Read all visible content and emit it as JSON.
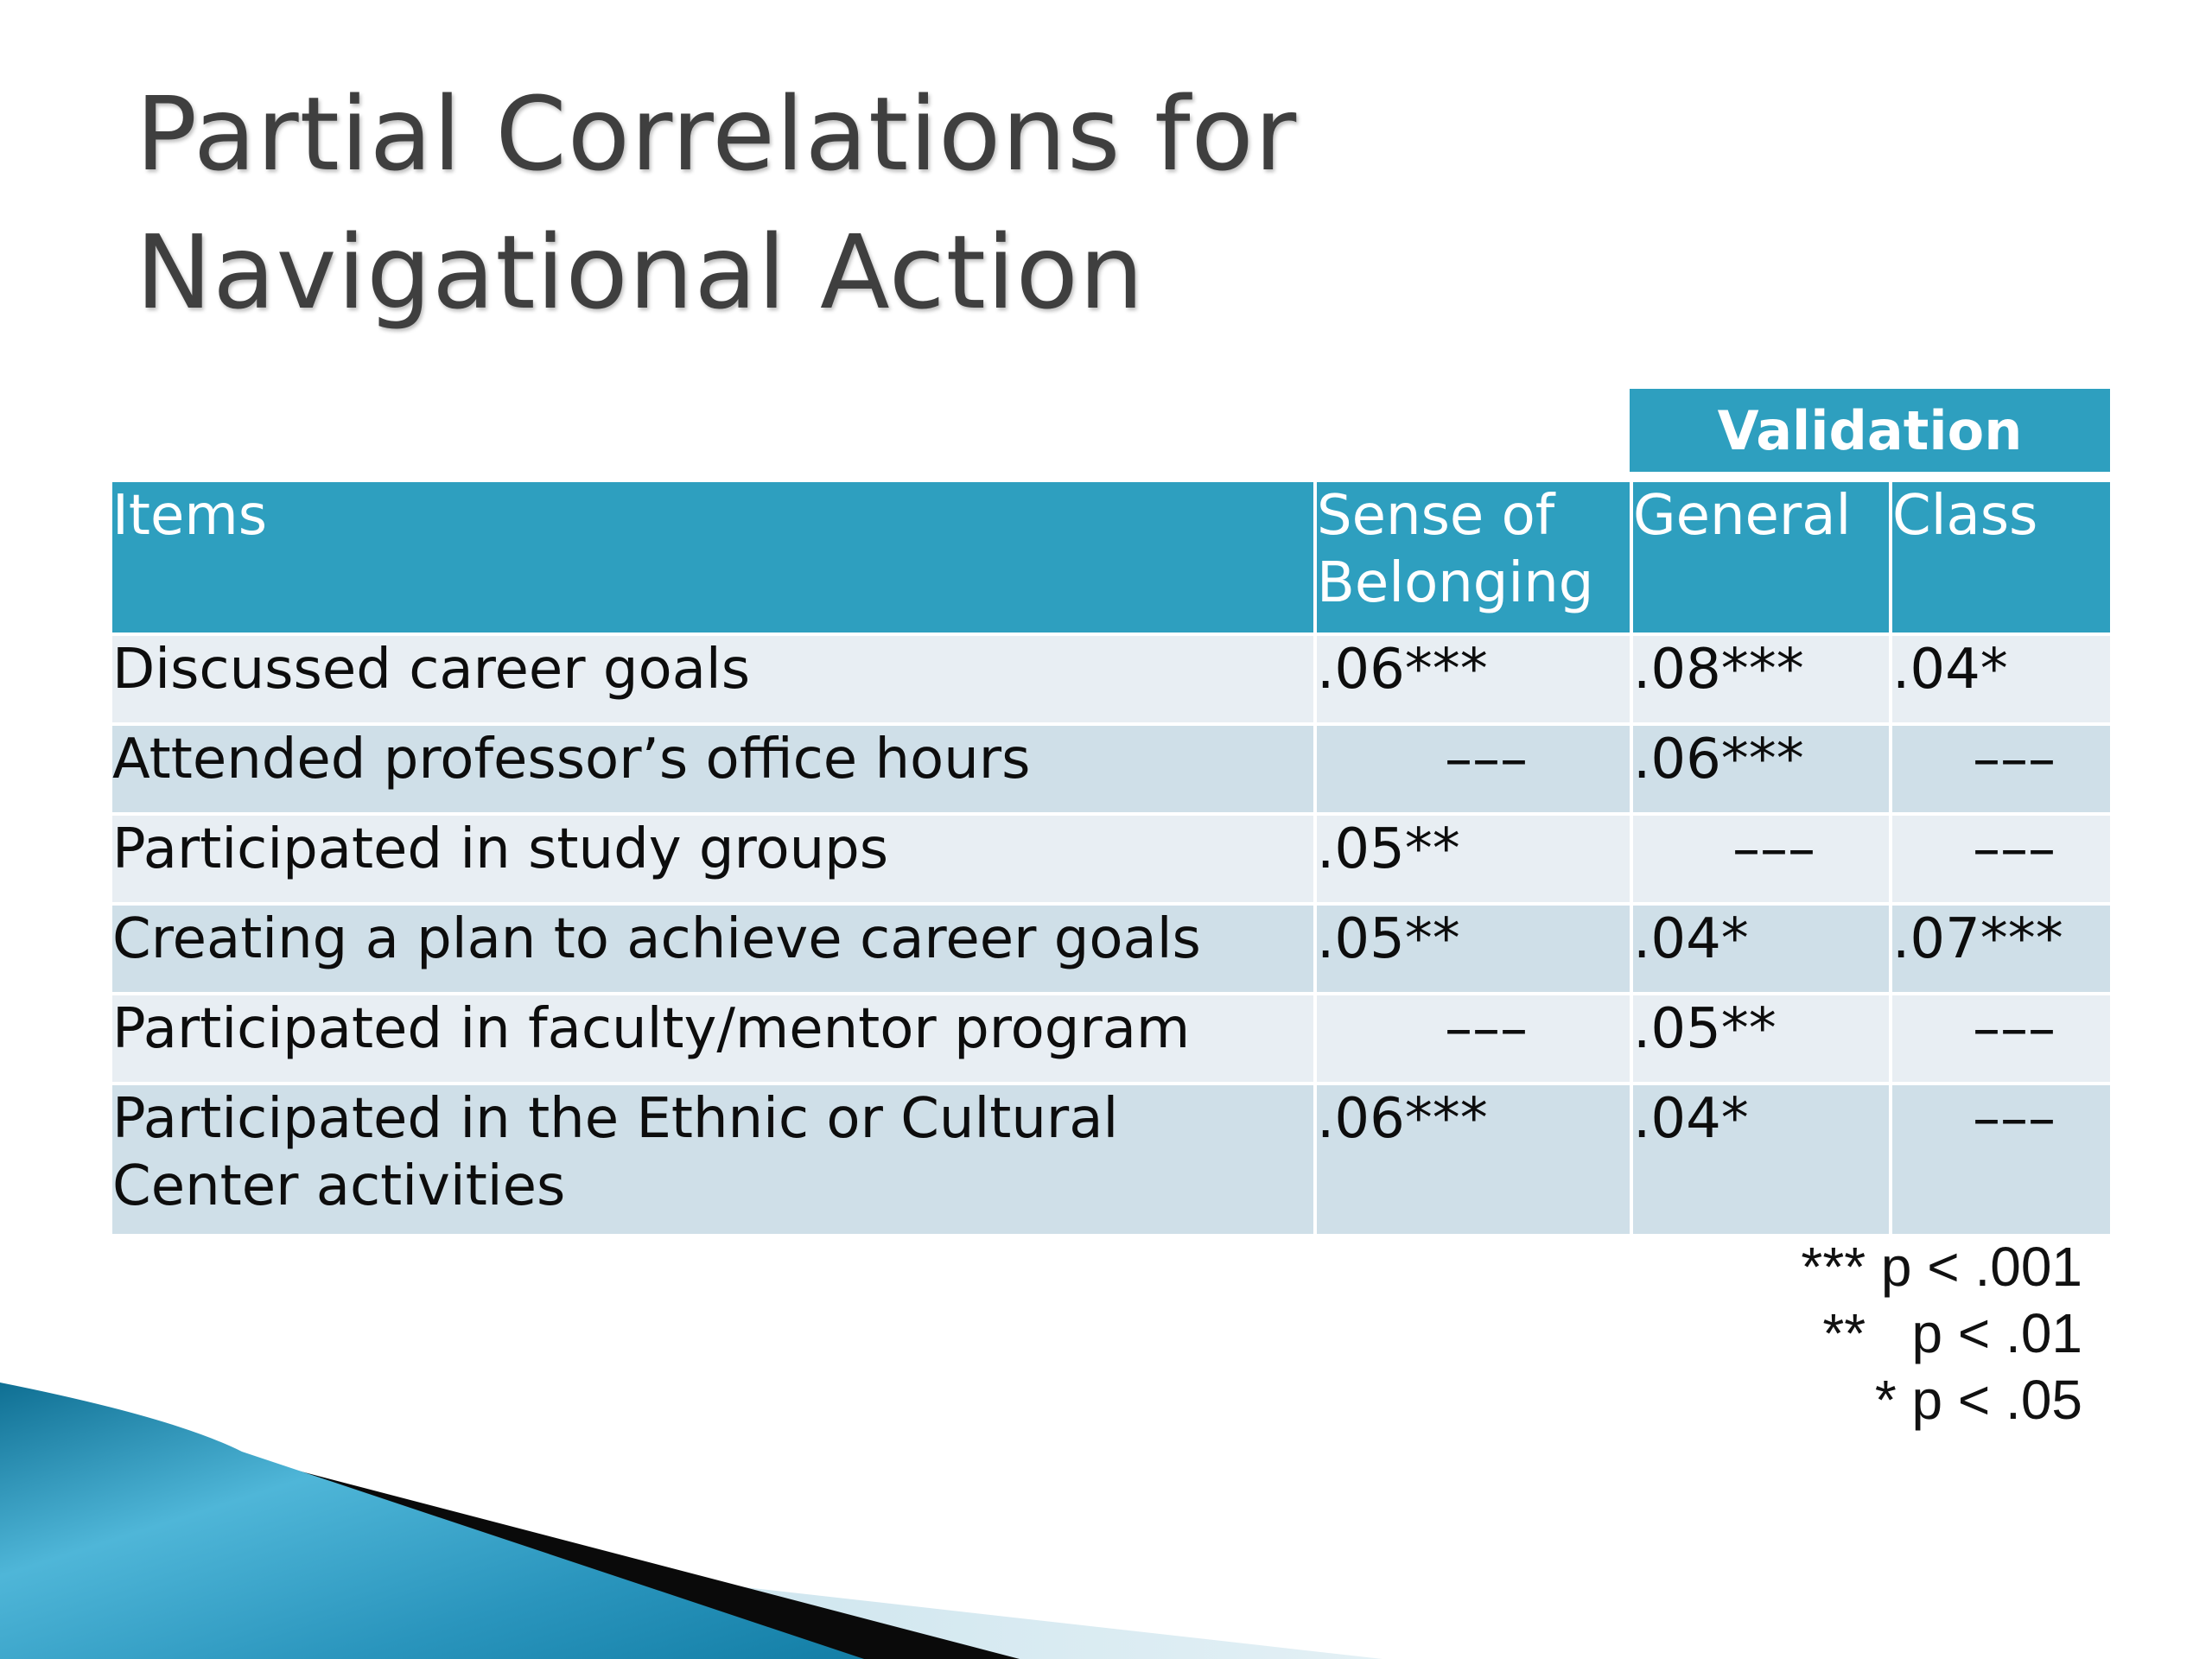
{
  "slide": {
    "title_line1": "Partial Correlations for",
    "title_line2": "Navigational Action"
  },
  "table": {
    "group_header": "Validation",
    "columns": {
      "items": "Items",
      "sense_line1": "Sense of",
      "sense_line2": "Belonging",
      "general": "General",
      "class": "Class"
    },
    "rows": [
      {
        "item_line1": "Discussed career goals",
        "item_line2": "",
        "sense": ".06***",
        "general": ".08***",
        "class": ".04*"
      },
      {
        "item_line1": "Attended professor’s office hours",
        "item_line2": "",
        "sense": "–––",
        "general": ".06***",
        "class": "–––"
      },
      {
        "item_line1": "Participated in study groups",
        "item_line2": "",
        "sense": ".05**",
        "general": "–––",
        "class": "–––"
      },
      {
        "item_line1": "Creating a plan to achieve career goals",
        "item_line2": "",
        "sense": ".05**",
        "general": ".04*",
        "class": ".07***"
      },
      {
        "item_line1": "Participated in faculty/mentor program",
        "item_line2": "",
        "sense": "–––",
        "general": ".05**",
        "class": "–––"
      },
      {
        "item_line1": "Participated in the Ethnic or Cultural",
        "item_line2": "Center activities",
        "sense": ".06***",
        "general": ".04*",
        "class": "–––"
      }
    ]
  },
  "legend": {
    "line1": "*** p < .001",
    "line2": "**   p < .01",
    "line3": "* p < .05"
  },
  "colors": {
    "header_bg": "#2e9fbf",
    "row_light": "#e8eef3",
    "row_dark": "#cfdfe8",
    "title_text": "#3f3f3f",
    "decor_blue": "#1a7fa6"
  }
}
